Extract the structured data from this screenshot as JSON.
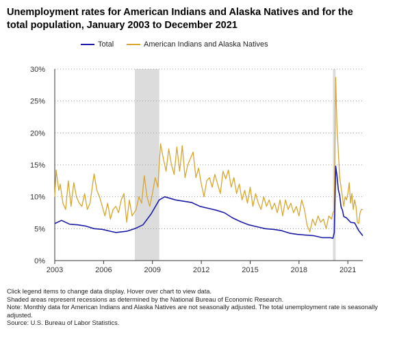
{
  "chart_data": {
    "type": "line",
    "title": "Unemployment rates for American Indians and Alaska Natives and for the total population, January 2003 to December 2021",
    "xlabel": "",
    "ylabel": "",
    "x_range": [
      "2003-01",
      "2021-12"
    ],
    "ylim": [
      0,
      30
    ],
    "y_ticks": [
      "0%",
      "5%",
      "10%",
      "15%",
      "20%",
      "25%",
      "30%"
    ],
    "x_ticks": [
      "2003",
      "2006",
      "2009",
      "2012",
      "2015",
      "2018",
      "2021"
    ],
    "grid": "horizontal dotted",
    "legend_position": "top",
    "recessions": [
      {
        "start": "2007-12",
        "end": "2009-06"
      },
      {
        "start": "2020-02",
        "end": "2020-04"
      }
    ],
    "series": [
      {
        "name": "Total",
        "color": "#1a1aa6",
        "frequency": "monthly, seasonally adjusted",
        "anchors": [
          [
            "2003-01",
            5.8
          ],
          [
            "2003-06",
            6.3
          ],
          [
            "2003-12",
            5.7
          ],
          [
            "2004-06",
            5.6
          ],
          [
            "2004-12",
            5.4
          ],
          [
            "2005-06",
            5.0
          ],
          [
            "2005-12",
            4.9
          ],
          [
            "2006-06",
            4.6
          ],
          [
            "2006-10",
            4.4
          ],
          [
            "2007-06",
            4.6
          ],
          [
            "2007-12",
            5.0
          ],
          [
            "2008-06",
            5.6
          ],
          [
            "2008-12",
            7.3
          ],
          [
            "2009-06",
            9.5
          ],
          [
            "2009-10",
            10.0
          ],
          [
            "2010-06",
            9.5
          ],
          [
            "2010-12",
            9.3
          ],
          [
            "2011-06",
            9.1
          ],
          [
            "2011-12",
            8.5
          ],
          [
            "2012-06",
            8.2
          ],
          [
            "2012-12",
            7.9
          ],
          [
            "2013-06",
            7.5
          ],
          [
            "2013-12",
            6.7
          ],
          [
            "2014-06",
            6.1
          ],
          [
            "2014-12",
            5.6
          ],
          [
            "2015-06",
            5.3
          ],
          [
            "2015-12",
            5.0
          ],
          [
            "2016-06",
            4.9
          ],
          [
            "2016-12",
            4.7
          ],
          [
            "2017-06",
            4.3
          ],
          [
            "2017-12",
            4.1
          ],
          [
            "2018-06",
            4.0
          ],
          [
            "2018-12",
            3.9
          ],
          [
            "2019-06",
            3.6
          ],
          [
            "2019-12",
            3.6
          ],
          [
            "2020-02",
            3.5
          ],
          [
            "2020-03",
            4.4
          ],
          [
            "2020-04",
            14.8
          ],
          [
            "2020-05",
            13.3
          ],
          [
            "2020-06",
            11.1
          ],
          [
            "2020-07",
            10.2
          ],
          [
            "2020-08",
            8.4
          ],
          [
            "2020-09",
            7.9
          ],
          [
            "2020-10",
            6.9
          ],
          [
            "2020-12",
            6.7
          ],
          [
            "2021-03",
            6.0
          ],
          [
            "2021-06",
            5.9
          ],
          [
            "2021-09",
            4.7
          ],
          [
            "2021-12",
            3.9
          ]
        ]
      },
      {
        "name": "American Indians and Alaska Natives",
        "color": "#d9a52b",
        "frequency": "monthly, not seasonally adjusted",
        "anchors": [
          [
            "2003-01",
            10.0
          ],
          [
            "2003-02",
            14.2
          ],
          [
            "2003-04",
            11.0
          ],
          [
            "2003-05",
            12.0
          ],
          [
            "2003-07",
            9.0
          ],
          [
            "2003-09",
            8.0
          ],
          [
            "2003-11",
            12.5
          ],
          [
            "2004-01",
            8.5
          ],
          [
            "2004-03",
            12.2
          ],
          [
            "2004-05",
            10.0
          ],
          [
            "2004-07",
            9.0
          ],
          [
            "2004-09",
            8.5
          ],
          [
            "2004-11",
            10.5
          ],
          [
            "2005-01",
            8.0
          ],
          [
            "2005-03",
            9.0
          ],
          [
            "2005-06",
            13.6
          ],
          [
            "2005-08",
            11.0
          ],
          [
            "2005-10",
            10.0
          ],
          [
            "2005-12",
            8.5
          ],
          [
            "2006-02",
            7.0
          ],
          [
            "2006-04",
            9.0
          ],
          [
            "2006-06",
            6.5
          ],
          [
            "2006-08",
            8.0
          ],
          [
            "2006-10",
            8.5
          ],
          [
            "2006-12",
            7.5
          ],
          [
            "2007-02",
            9.5
          ],
          [
            "2007-04",
            10.5
          ],
          [
            "2007-06",
            6.0
          ],
          [
            "2007-08",
            9.5
          ],
          [
            "2007-10",
            7.0
          ],
          [
            "2008-01",
            8.0
          ],
          [
            "2008-03",
            10.0
          ],
          [
            "2008-05",
            9.0
          ],
          [
            "2008-07",
            13.3
          ],
          [
            "2008-09",
            10.0
          ],
          [
            "2008-11",
            8.5
          ],
          [
            "2009-01",
            10.5
          ],
          [
            "2009-03",
            13.0
          ],
          [
            "2009-05",
            11.5
          ],
          [
            "2009-06",
            15.0
          ],
          [
            "2009-07",
            18.3
          ],
          [
            "2009-09",
            16.0
          ],
          [
            "2009-11",
            14.0
          ],
          [
            "2010-01",
            17.5
          ],
          [
            "2010-03",
            15.0
          ],
          [
            "2010-05",
            13.5
          ],
          [
            "2010-07",
            17.8
          ],
          [
            "2010-09",
            14.0
          ],
          [
            "2010-11",
            18.0
          ],
          [
            "2011-01",
            13.0
          ],
          [
            "2011-03",
            15.0
          ],
          [
            "2011-05",
            16.0
          ],
          [
            "2011-07",
            17.0
          ],
          [
            "2011-09",
            13.0
          ],
          [
            "2011-11",
            14.5
          ],
          [
            "2012-01",
            12.0
          ],
          [
            "2012-03",
            10.0
          ],
          [
            "2012-05",
            12.5
          ],
          [
            "2012-07",
            13.0
          ],
          [
            "2012-09",
            11.5
          ],
          [
            "2012-11",
            13.5
          ],
          [
            "2013-01",
            12.0
          ],
          [
            "2013-03",
            10.5
          ],
          [
            "2013-05",
            14.0
          ],
          [
            "2013-07",
            12.8
          ],
          [
            "2013-09",
            14.2
          ],
          [
            "2013-11",
            11.5
          ],
          [
            "2014-01",
            13.0
          ],
          [
            "2014-03",
            10.5
          ],
          [
            "2014-05",
            12.0
          ],
          [
            "2014-07",
            9.5
          ],
          [
            "2014-09",
            11.0
          ],
          [
            "2014-11",
            9.0
          ],
          [
            "2015-01",
            11.5
          ],
          [
            "2015-03",
            8.5
          ],
          [
            "2015-05",
            10.5
          ],
          [
            "2015-07",
            9.0
          ],
          [
            "2015-09",
            8.0
          ],
          [
            "2015-11",
            10.0
          ],
          [
            "2016-01",
            8.5
          ],
          [
            "2016-03",
            9.5
          ],
          [
            "2016-05",
            8.0
          ],
          [
            "2016-07",
            9.0
          ],
          [
            "2016-09",
            7.5
          ],
          [
            "2016-11",
            9.5
          ],
          [
            "2017-01",
            7.0
          ],
          [
            "2017-03",
            9.5
          ],
          [
            "2017-05",
            8.0
          ],
          [
            "2017-07",
            9.0
          ],
          [
            "2017-09",
            7.5
          ],
          [
            "2017-11",
            8.5
          ],
          [
            "2018-01",
            7.0
          ],
          [
            "2018-03",
            9.5
          ],
          [
            "2018-05",
            8.0
          ],
          [
            "2018-07",
            5.5
          ],
          [
            "2018-09",
            4.5
          ],
          [
            "2018-11",
            6.5
          ],
          [
            "2019-01",
            5.5
          ],
          [
            "2019-03",
            7.0
          ],
          [
            "2019-05",
            6.0
          ],
          [
            "2019-07",
            6.5
          ],
          [
            "2019-09",
            5.0
          ],
          [
            "2019-11",
            7.0
          ],
          [
            "2020-01",
            6.5
          ],
          [
            "2020-02",
            7.5
          ],
          [
            "2020-03",
            7.8
          ],
          [
            "2020-04",
            28.7
          ],
          [
            "2020-05",
            21.0
          ],
          [
            "2020-06",
            17.0
          ],
          [
            "2020-07",
            13.0
          ],
          [
            "2020-08",
            11.5
          ],
          [
            "2020-09",
            10.0
          ],
          [
            "2020-10",
            8.5
          ],
          [
            "2020-11",
            10.0
          ],
          [
            "2020-12",
            9.5
          ],
          [
            "2021-01",
            10.5
          ],
          [
            "2021-02",
            12.2
          ],
          [
            "2021-03",
            9.0
          ],
          [
            "2021-04",
            10.5
          ],
          [
            "2021-05",
            8.0
          ],
          [
            "2021-06",
            9.5
          ],
          [
            "2021-07",
            8.5
          ],
          [
            "2021-08",
            6.0
          ],
          [
            "2021-09",
            5.8
          ],
          [
            "2021-10",
            7.5
          ],
          [
            "2021-11",
            8.0
          ],
          [
            "2021-12",
            8.0
          ]
        ]
      }
    ]
  },
  "notes": [
    "Click legend items to change data display. Hover over chart to view data.",
    "Shaded areas represent recessions as determined by the National Bureau of Economic Research.",
    "Note: Monthly data for American Indians and Alaska Natives are not seasonally adjusted. The total unemployment rate is seasonally adjusted.",
    "Source: U.S. Bureau of Labor Statistics."
  ]
}
